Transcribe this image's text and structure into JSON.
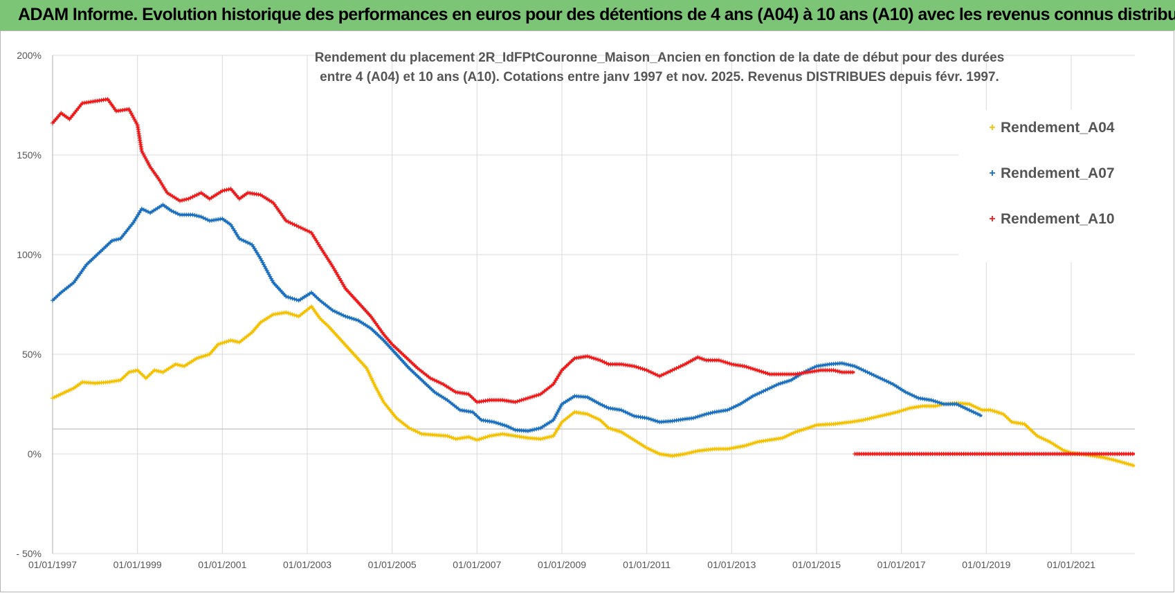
{
  "banner": {
    "title": "ADAM Informe. Evolution historique des performances en euros pour des détentions de 4 ans (A04) à 10 ans (A10) avec les revenus connus distribués"
  },
  "chart_data": {
    "type": "line",
    "title_lines": [
      "Rendement du placement 2R_IdFPtCouronne_Maison_Ancien en fonction de la date de début pour des durées",
      "entre 4 (A04) et 10 ans (A10).  Cotations entre janv 1997 et  nov. 2025. Revenus DISTRIBUES depuis févr. 1997."
    ],
    "xlabel": "",
    "ylabel": "",
    "xlim": [
      1997.0,
      2022.5
    ],
    "ylim": [
      -50,
      200
    ],
    "y_ticks": [
      -50,
      0,
      50,
      100,
      150,
      200
    ],
    "y_tick_labels": [
      "- 50%",
      "0%",
      "50%",
      "100%",
      "150%",
      "200%"
    ],
    "x_ticks": [
      1997,
      1999,
      2001,
      2003,
      2005,
      2007,
      2009,
      2011,
      2013,
      2015,
      2017,
      2019,
      2021
    ],
    "x_tick_labels": [
      "01/01/1997",
      "01/01/1999",
      "01/01/2001",
      "01/01/2003",
      "01/01/2005",
      "01/01/2007",
      "01/01/2009",
      "01/01/2011",
      "01/01/2013",
      "01/01/2015",
      "01/01/2017",
      "01/01/2019",
      "01/01/2021"
    ],
    "grid": true,
    "legend_position": "top-right",
    "series": [
      {
        "name": "Rendement_A04",
        "color": "#f5c000",
        "points": [
          [
            1997.0,
            28
          ],
          [
            1997.5,
            33
          ],
          [
            1997.7,
            36
          ],
          [
            1998.0,
            35.5
          ],
          [
            1998.3,
            36
          ],
          [
            1998.6,
            37
          ],
          [
            1998.8,
            41
          ],
          [
            1999.0,
            42
          ],
          [
            1999.2,
            38
          ],
          [
            1999.4,
            42
          ],
          [
            1999.6,
            41
          ],
          [
            1999.9,
            45
          ],
          [
            2000.1,
            44
          ],
          [
            2000.4,
            48
          ],
          [
            2000.7,
            50
          ],
          [
            2000.9,
            55
          ],
          [
            2001.2,
            57
          ],
          [
            2001.4,
            56
          ],
          [
            2001.7,
            61
          ],
          [
            2001.9,
            66
          ],
          [
            2002.2,
            70
          ],
          [
            2002.5,
            71
          ],
          [
            2002.8,
            69
          ],
          [
            2003.1,
            74
          ],
          [
            2003.3,
            68
          ],
          [
            2003.5,
            64
          ],
          [
            2003.8,
            57
          ],
          [
            2004.1,
            50
          ],
          [
            2004.4,
            43
          ],
          [
            2004.6,
            34
          ],
          [
            2004.8,
            26
          ],
          [
            2005.1,
            18
          ],
          [
            2005.4,
            13
          ],
          [
            2005.7,
            10
          ],
          [
            2006.0,
            9.5
          ],
          [
            2006.3,
            9
          ],
          [
            2006.5,
            7.5
          ],
          [
            2006.8,
            8.5
          ],
          [
            2007.0,
            7
          ],
          [
            2007.3,
            9
          ],
          [
            2007.6,
            10
          ],
          [
            2007.9,
            9
          ],
          [
            2008.2,
            8
          ],
          [
            2008.5,
            7.5
          ],
          [
            2008.8,
            9
          ],
          [
            2009.0,
            16
          ],
          [
            2009.3,
            21
          ],
          [
            2009.6,
            20
          ],
          [
            2009.9,
            17
          ],
          [
            2010.1,
            13
          ],
          [
            2010.4,
            11
          ],
          [
            2010.7,
            7
          ],
          [
            2011.0,
            3
          ],
          [
            2011.3,
            0
          ],
          [
            2011.6,
            -1
          ],
          [
            2011.9,
            0
          ],
          [
            2012.2,
            1.5
          ],
          [
            2012.6,
            2.5
          ],
          [
            2012.9,
            2.5
          ],
          [
            2013.3,
            4
          ],
          [
            2013.6,
            6
          ],
          [
            2013.9,
            7
          ],
          [
            2014.2,
            8
          ],
          [
            2014.5,
            11
          ],
          [
            2014.8,
            13
          ],
          [
            2015.0,
            14.5
          ],
          [
            2015.4,
            15
          ],
          [
            2015.8,
            16
          ],
          [
            2016.1,
            17
          ],
          [
            2016.5,
            19
          ],
          [
            2016.9,
            21
          ],
          [
            2017.2,
            23
          ],
          [
            2017.5,
            24
          ],
          [
            2017.8,
            24
          ],
          [
            2018.0,
            25
          ],
          [
            2018.3,
            25.5
          ],
          [
            2018.6,
            25
          ],
          [
            2018.9,
            22
          ],
          [
            2019.1,
            22
          ],
          [
            2019.4,
            20
          ],
          [
            2019.6,
            16
          ],
          [
            2019.9,
            15
          ],
          [
            2020.2,
            9
          ],
          [
            2020.5,
            6
          ],
          [
            2020.8,
            2
          ],
          [
            2021.0,
            0.5
          ],
          [
            2021.4,
            -0.5
          ],
          [
            2021.8,
            -2
          ],
          [
            2022.0,
            -3
          ],
          [
            2022.5,
            -6
          ]
        ]
      },
      {
        "name": "Rendement_A07",
        "color": "#1a6fc0",
        "points": [
          [
            1997.0,
            77
          ],
          [
            1997.2,
            81
          ],
          [
            1997.5,
            86
          ],
          [
            1997.8,
            95
          ],
          [
            1998.1,
            101
          ],
          [
            1998.4,
            107
          ],
          [
            1998.6,
            108
          ],
          [
            1998.9,
            116
          ],
          [
            1999.1,
            123
          ],
          [
            1999.3,
            121
          ],
          [
            1999.6,
            125
          ],
          [
            1999.8,
            122
          ],
          [
            2000.0,
            120
          ],
          [
            2000.3,
            120
          ],
          [
            2000.5,
            119
          ],
          [
            2000.7,
            117
          ],
          [
            2001.0,
            118
          ],
          [
            2001.2,
            115
          ],
          [
            2001.4,
            108
          ],
          [
            2001.7,
            105
          ],
          [
            2001.9,
            98
          ],
          [
            2002.2,
            86
          ],
          [
            2002.5,
            79
          ],
          [
            2002.8,
            77
          ],
          [
            2003.1,
            81
          ],
          [
            2003.3,
            77
          ],
          [
            2003.6,
            72
          ],
          [
            2003.9,
            69
          ],
          [
            2004.2,
            67
          ],
          [
            2004.5,
            63
          ],
          [
            2004.8,
            57
          ],
          [
            2005.1,
            50
          ],
          [
            2005.4,
            43
          ],
          [
            2005.7,
            37
          ],
          [
            2006.0,
            31
          ],
          [
            2006.3,
            27
          ],
          [
            2006.6,
            22
          ],
          [
            2006.9,
            21
          ],
          [
            2007.1,
            17
          ],
          [
            2007.4,
            16
          ],
          [
            2007.7,
            14
          ],
          [
            2007.9,
            12
          ],
          [
            2008.2,
            11.5
          ],
          [
            2008.5,
            13
          ],
          [
            2008.8,
            17
          ],
          [
            2009.0,
            25
          ],
          [
            2009.3,
            29
          ],
          [
            2009.6,
            28.5
          ],
          [
            2009.9,
            25
          ],
          [
            2010.1,
            23
          ],
          [
            2010.4,
            22
          ],
          [
            2010.7,
            19
          ],
          [
            2011.0,
            18
          ],
          [
            2011.3,
            16
          ],
          [
            2011.6,
            16.5
          ],
          [
            2011.9,
            17.5
          ],
          [
            2012.1,
            18
          ],
          [
            2012.4,
            20
          ],
          [
            2012.6,
            21
          ],
          [
            2012.9,
            22
          ],
          [
            2013.2,
            25
          ],
          [
            2013.5,
            29
          ],
          [
            2013.8,
            32
          ],
          [
            2014.1,
            35
          ],
          [
            2014.4,
            37
          ],
          [
            2014.7,
            41
          ],
          [
            2015.0,
            44
          ],
          [
            2015.3,
            45
          ],
          [
            2015.6,
            45.5
          ],
          [
            2015.9,
            44
          ],
          [
            2016.2,
            41
          ],
          [
            2016.5,
            38
          ],
          [
            2016.8,
            35
          ],
          [
            2017.1,
            31
          ],
          [
            2017.4,
            28
          ],
          [
            2017.7,
            27
          ],
          [
            2018.0,
            25
          ],
          [
            2018.3,
            25
          ],
          [
            2018.6,
            22
          ],
          [
            2018.9,
            19
          ]
        ]
      },
      {
        "name": "Rendement_A10",
        "color": "#ee1a1a",
        "points": [
          [
            1997.0,
            166
          ],
          [
            1997.2,
            171
          ],
          [
            1997.4,
            168
          ],
          [
            1997.7,
            176
          ],
          [
            1998.0,
            177
          ],
          [
            1998.3,
            178
          ],
          [
            1998.5,
            172
          ],
          [
            1998.8,
            173
          ],
          [
            1999.0,
            165
          ],
          [
            1999.1,
            152
          ],
          [
            1999.3,
            144
          ],
          [
            1999.5,
            138
          ],
          [
            1999.7,
            131
          ],
          [
            2000.0,
            127
          ],
          [
            2000.2,
            128
          ],
          [
            2000.5,
            131
          ],
          [
            2000.7,
            128
          ],
          [
            2001.0,
            132
          ],
          [
            2001.2,
            133
          ],
          [
            2001.4,
            128
          ],
          [
            2001.6,
            131
          ],
          [
            2001.9,
            130
          ],
          [
            2002.2,
            126
          ],
          [
            2002.5,
            117
          ],
          [
            2002.8,
            114
          ],
          [
            2003.1,
            111
          ],
          [
            2003.3,
            104
          ],
          [
            2003.6,
            94
          ],
          [
            2003.9,
            83
          ],
          [
            2004.2,
            76
          ],
          [
            2004.5,
            69
          ],
          [
            2004.8,
            60
          ],
          [
            2005.0,
            55
          ],
          [
            2005.3,
            49
          ],
          [
            2005.6,
            43
          ],
          [
            2005.9,
            38
          ],
          [
            2006.2,
            35
          ],
          [
            2006.5,
            31
          ],
          [
            2006.8,
            30
          ],
          [
            2007.0,
            26
          ],
          [
            2007.3,
            27
          ],
          [
            2007.6,
            27
          ],
          [
            2007.9,
            26
          ],
          [
            2008.2,
            28
          ],
          [
            2008.5,
            30
          ],
          [
            2008.8,
            35
          ],
          [
            2009.0,
            42
          ],
          [
            2009.3,
            48
          ],
          [
            2009.6,
            49
          ],
          [
            2009.9,
            47
          ],
          [
            2010.1,
            45
          ],
          [
            2010.4,
            45
          ],
          [
            2010.7,
            44
          ],
          [
            2011.0,
            42
          ],
          [
            2011.3,
            39
          ],
          [
            2011.6,
            42
          ],
          [
            2011.9,
            45
          ],
          [
            2012.2,
            48.5
          ],
          [
            2012.4,
            47
          ],
          [
            2012.7,
            47
          ],
          [
            2013.0,
            45
          ],
          [
            2013.3,
            44
          ],
          [
            2013.6,
            42
          ],
          [
            2013.9,
            40
          ],
          [
            2014.2,
            40
          ],
          [
            2014.5,
            40
          ],
          [
            2014.8,
            41
          ],
          [
            2015.1,
            42
          ],
          [
            2015.4,
            42
          ],
          [
            2015.6,
            41
          ],
          [
            2015.9,
            41
          ]
        ]
      },
      {
        "name": "Rendement_A10",
        "color": "#ee1a1a",
        "points": [
          [
            2015.9,
            0
          ],
          [
            2022.5,
            0
          ]
        ]
      }
    ],
    "legend": [
      {
        "name": "Rendement_A04",
        "color": "#f5c000"
      },
      {
        "name": "Rendement_A07",
        "color": "#1a6fc0"
      },
      {
        "name": "Rendement_A10",
        "color": "#ee1a1a"
      }
    ]
  }
}
